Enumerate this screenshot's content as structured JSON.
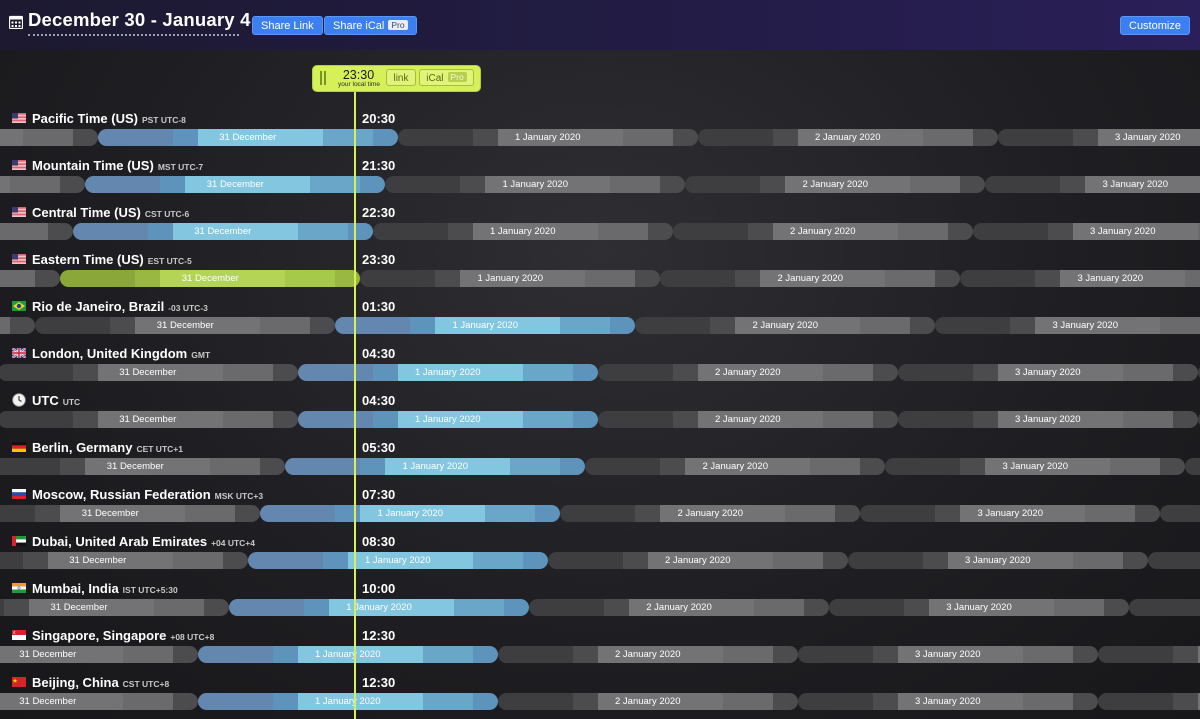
{
  "header": {
    "title": "December 30 - January 4",
    "share_link_label": "Share Link",
    "share_ical_label": "Share iCal",
    "pro_label": "Pro",
    "customize_label": "Customize"
  },
  "now": {
    "time": "23:30",
    "subtitle": "your local time",
    "link_label": "link",
    "ical_label": "iCal",
    "pro_label": "Pro"
  },
  "colors": {
    "night": "#4c4c4f",
    "night_dark": "#3e3e41",
    "evening": "#6a6a6d",
    "day_blue": "#6aa6c8",
    "day_blue_light": "#82c6e0",
    "edge_blue": "#6487b0",
    "local_green": "#a7c94a",
    "accent_button": "#3c7ff1"
  },
  "rows": [
    {
      "name": "Pacific Time (US)",
      "abbr": "PST UTC-8",
      "time": "20:30",
      "flag": "us",
      "offset": -8,
      "labels": [
        {
          "text": "31 December",
          "at": 0
        },
        {
          "text": "1 January 2020",
          "at": 1
        },
        {
          "text": "2 January 2020",
          "at": 2
        },
        {
          "text": "3 January 2020",
          "at": 3
        }
      ]
    },
    {
      "name": "Mountain Time (US)",
      "abbr": "MST UTC-7",
      "time": "21:30",
      "flag": "us",
      "offset": -7,
      "labels": [
        {
          "text": "31 December",
          "at": 0
        },
        {
          "text": "1 January 2020",
          "at": 1
        },
        {
          "text": "2 January 2020",
          "at": 2
        },
        {
          "text": "3 January 2020",
          "at": 3
        }
      ]
    },
    {
      "name": "Central Time (US)",
      "abbr": "CST UTC-6",
      "time": "22:30",
      "flag": "us",
      "offset": -6,
      "labels": [
        {
          "text": "31 December",
          "at": 0
        },
        {
          "text": "1 January 2020",
          "at": 1
        },
        {
          "text": "2 January 2020",
          "at": 2
        },
        {
          "text": "3 January 2020",
          "at": 3
        }
      ]
    },
    {
      "name": "Eastern Time (US)",
      "abbr": "EST UTC-5",
      "time": "23:30",
      "flag": "us",
      "offset": -5,
      "local": true,
      "labels": [
        {
          "text": "31 December",
          "at": 0
        },
        {
          "text": "1 January 2020",
          "at": 1
        },
        {
          "text": "2 January 2020",
          "at": 2
        },
        {
          "text": "3 January 2020",
          "at": 3
        }
      ]
    },
    {
      "name": "Rio de Janeiro, Brazil",
      "abbr": "-03 UTC-3",
      "time": "01:30",
      "flag": "br",
      "offset": -3,
      "labels": [
        {
          "text": "31 December",
          "at": -1
        },
        {
          "text": "1 January 2020",
          "at": 0
        },
        {
          "text": "2 January 2020",
          "at": 1
        },
        {
          "text": "3 January 2020",
          "at": 2
        }
      ]
    },
    {
      "name": "London, United Kingdom",
      "abbr": "GMT",
      "time": "04:30",
      "flag": "gb",
      "offset": 0,
      "labels": [
        {
          "text": "31 December",
          "at": -1
        },
        {
          "text": "1 January 2020",
          "at": 0
        },
        {
          "text": "2 January 2020",
          "at": 1
        },
        {
          "text": "3 January 2020",
          "at": 2
        }
      ]
    },
    {
      "name": "UTC",
      "abbr": "UTC",
      "time": "04:30",
      "flag": "clock",
      "offset": 0,
      "labels": [
        {
          "text": "31 December",
          "at": -1
        },
        {
          "text": "1 January 2020",
          "at": 0
        },
        {
          "text": "2 January 2020",
          "at": 1
        },
        {
          "text": "3 January 2020",
          "at": 2
        }
      ]
    },
    {
      "name": "Berlin, Germany",
      "abbr": "CET UTC+1",
      "time": "05:30",
      "flag": "de",
      "offset": 1,
      "labels": [
        {
          "text": "31 December",
          "at": -1
        },
        {
          "text": "1 January 2020",
          "at": 0
        },
        {
          "text": "2 January 2020",
          "at": 1
        },
        {
          "text": "3 January 2020",
          "at": 2
        }
      ]
    },
    {
      "name": "Moscow, Russian Federation",
      "abbr": "MSK UTC+3",
      "time": "07:30",
      "flag": "ru",
      "offset": 3,
      "labels": [
        {
          "text": "31 December",
          "at": -1
        },
        {
          "text": "1 January 2020",
          "at": 0
        },
        {
          "text": "2 January 2020",
          "at": 1
        },
        {
          "text": "3 January 2020",
          "at": 2
        }
      ]
    },
    {
      "name": "Dubai, United Arab Emirates",
      "abbr": "+04 UTC+4",
      "time": "08:30",
      "flag": "ae",
      "offset": 4,
      "labels": [
        {
          "text": "31 December",
          "at": -1
        },
        {
          "text": "1 January 2020",
          "at": 0
        },
        {
          "text": "2 January 2020",
          "at": 1
        },
        {
          "text": "3 January 2020",
          "at": 2
        }
      ]
    },
    {
      "name": "Mumbai, India",
      "abbr": "IST UTC+5:30",
      "time": "10:00",
      "flag": "in",
      "offset": 5.5,
      "labels": [
        {
          "text": "31 December",
          "at": -1
        },
        {
          "text": "1 January 2020",
          "at": 0
        },
        {
          "text": "2 January 2020",
          "at": 1
        },
        {
          "text": "3 January 2020",
          "at": 2
        }
      ]
    },
    {
      "name": "Singapore, Singapore",
      "abbr": "+08 UTC+8",
      "time": "12:30",
      "flag": "sg",
      "offset": 8,
      "labels": [
        {
          "text": "31 December",
          "at": -1
        },
        {
          "text": "1 January 2020",
          "at": 0
        },
        {
          "text": "2 January 2020",
          "at": 1
        },
        {
          "text": "3 January 2020",
          "at": 2
        }
      ]
    },
    {
      "name": "Beijing, China",
      "abbr": "CST UTC+8",
      "time": "12:30",
      "flag": "cn",
      "offset": 8,
      "labels": [
        {
          "text": "31 December",
          "at": -1
        },
        {
          "text": "1 January 2020",
          "at": 0
        },
        {
          "text": "2 January 2020",
          "at": 1
        },
        {
          "text": "3 January 2020",
          "at": 2
        }
      ]
    }
  ]
}
